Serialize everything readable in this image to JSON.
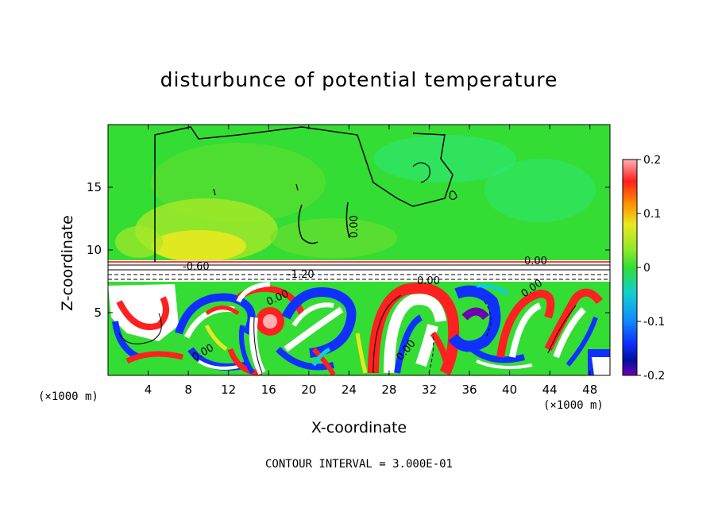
{
  "chart_data": {
    "type": "heatmap",
    "title": "disturbunce of potential temperature",
    "xlabel": "X-coordinate",
    "ylabel": "Z-coordinate",
    "x_unit_label": "(×1000 m)",
    "x_ticks": [
      4,
      8,
      12,
      16,
      20,
      24,
      28,
      32,
      36,
      40,
      44,
      48
    ],
    "y_ticks": [
      5,
      10,
      15
    ],
    "xlim": [
      0,
      50
    ],
    "ylim": [
      0,
      20
    ],
    "colorbar": {
      "range": [
        -0.2,
        0.2
      ],
      "tick_labels": [
        "0.2",
        "0.1",
        "0",
        "-0.1",
        "-0.2"
      ],
      "tick_values": [
        0.2,
        0.1,
        0,
        -0.1,
        -0.2
      ]
    },
    "contour_labels": [
      "0.00",
      "-0.60",
      "-1.20",
      "0.00",
      "0.00",
      "0.00",
      "0.00",
      "0.00",
      "0.00",
      "0.00"
    ],
    "footnote": "CONTOUR INTERVAL = 3.000E-01"
  },
  "colors": {
    "green_field": "#33dd33",
    "yellow": "#e8e820",
    "orange": "#ff8c00",
    "red": "#ff2020",
    "pink": "#ffb0b0",
    "cyan": "#10d0d0",
    "blue": "#1030ff",
    "navy": "#0010a0",
    "purple": "#7000b0"
  }
}
